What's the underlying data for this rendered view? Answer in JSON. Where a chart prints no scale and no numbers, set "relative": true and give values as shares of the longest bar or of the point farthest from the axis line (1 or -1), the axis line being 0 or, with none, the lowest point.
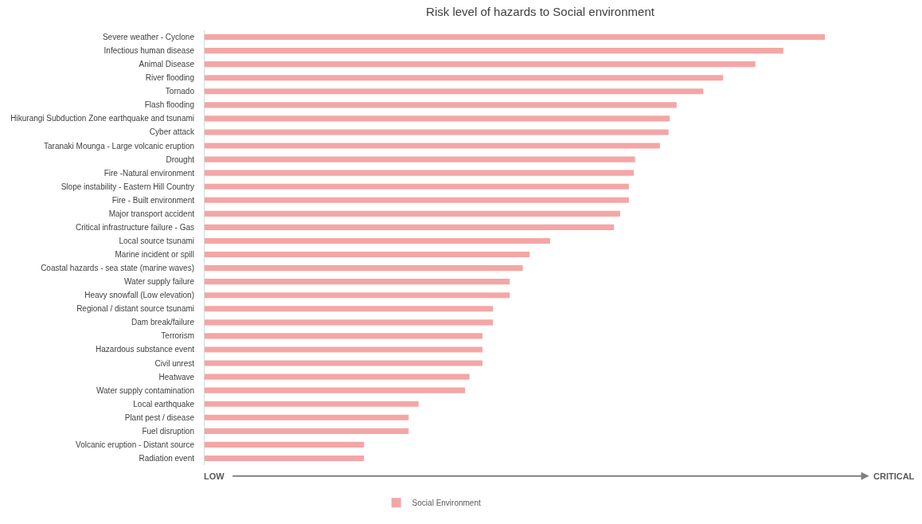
{
  "chart_data": {
    "type": "bar",
    "orientation": "horizontal",
    "relative": true,
    "title": "Risk level of hazards to Social environment",
    "categories": [
      "Severe weather - Cyclone",
      "Infectious human disease",
      "Animal Disease",
      "River flooding",
      "Tornado",
      "Flash flooding",
      "Hikurangi Subduction Zone earthquake and tsunami",
      "Cyber attack",
      "Taranaki Mounga - Large volcanic eruption",
      "Drought",
      "Fire -Natural environment",
      "Slope instability - Eastern Hill Country",
      "Fire - Built environment",
      "Major transport accident",
      "Critical infrastructure failure - Gas",
      "Local source tsunami",
      "Marine incident or spill",
      "Coastal hazards - sea state (marine waves)",
      "Water supply failure",
      "Heavy snowfall (Low elevation)",
      "Regional / distant source tsunami",
      "Dam break/failure",
      "Terrorism",
      "Hazardous substance event",
      "Civil unrest",
      "Heatwave",
      "Water supply contamination",
      "Local earthquake",
      "Plant pest / disease",
      "Fuel disruption",
      "Volcanic eruption - Distant source",
      "Radiation event"
    ],
    "series": [
      {
        "name": "Social Environment",
        "color": "#f4a6a6",
        "values": [
          1,
          0.933,
          0.888,
          0.836,
          0.804,
          0.761,
          0.75,
          0.748,
          0.734,
          0.694,
          0.692,
          0.684,
          0.684,
          0.67,
          0.66,
          0.557,
          0.524,
          0.513,
          0.492,
          0.492,
          0.465,
          0.465,
          0.448,
          0.448,
          0.448,
          0.427,
          0.42,
          0.345,
          0.329,
          0.329,
          0.257,
          0.257
        ]
      }
    ],
    "annotations": [
      "LOW",
      "CRITICAL"
    ],
    "legend": "bottom"
  }
}
